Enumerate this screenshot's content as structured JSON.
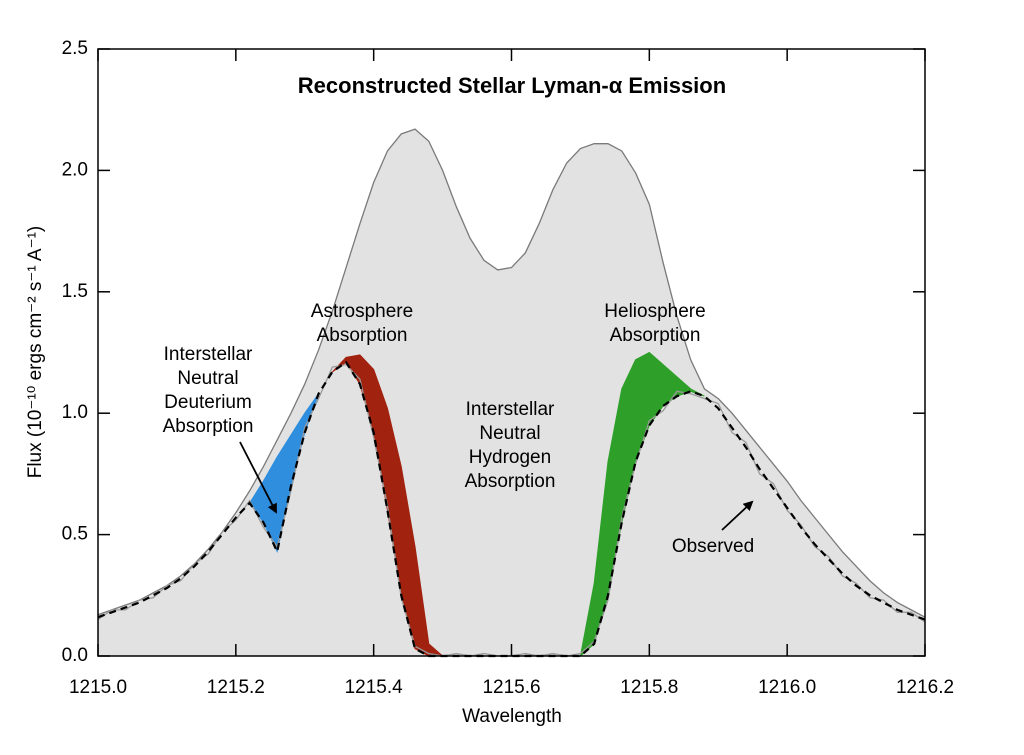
{
  "chart_data": {
    "type": "line",
    "title": "Reconstructed Stellar Lyman-α Emission",
    "x_label": "Wavelength",
    "y_label": "Flux (10⁻¹⁰ ergs cm⁻² s⁻¹ A⁻¹)",
    "xlim": [
      1215,
      1216.2
    ],
    "ylim": [
      0,
      2.5
    ],
    "xticks": [
      {
        "value": 1215,
        "label": "1215.0"
      },
      1215.2,
      1215.4,
      1215.6,
      1215.8,
      {
        "value": 1216,
        "label": "1216.0"
      },
      1216.2
    ],
    "yticks": [
      {
        "value": 0,
        "label": "0.0"
      },
      0.5,
      {
        "value": 1,
        "label": "1.0"
      },
      1.5,
      {
        "value": 2,
        "label": "2.0"
      },
      2.5
    ],
    "x": [
      1215,
      1215.02,
      1215.04,
      1215.06,
      1215.08,
      1215.1,
      1215.12,
      1215.14,
      1215.16,
      1215.18,
      1215.2,
      1215.22,
      1215.24,
      1215.26,
      1215.28,
      1215.3,
      1215.32,
      1215.34,
      1215.36,
      1215.38,
      1215.4,
      1215.42,
      1215.44,
      1215.46,
      1215.48,
      1215.5,
      1215.52,
      1215.54,
      1215.56,
      1215.58,
      1215.6,
      1215.62,
      1215.64,
      1215.66,
      1215.68,
      1215.7,
      1215.72,
      1215.74,
      1215.76,
      1215.78,
      1215.8,
      1215.82,
      1215.84,
      1215.86,
      1215.88,
      1215.9,
      1215.92,
      1215.94,
      1215.96,
      1215.98,
      1216,
      1216.02,
      1216.04,
      1216.06,
      1216.08,
      1216.1,
      1216.12,
      1216.14,
      1216.16,
      1216.18,
      1216.2
    ],
    "series": [
      {
        "style": "area",
        "color": "#e2e2e2",
        "line_color": "#7a7a7a",
        "values": [
          0.17,
          0.19,
          0.21,
          0.23,
          0.26,
          0.29,
          0.33,
          0.38,
          0.44,
          0.51,
          0.59,
          0.68,
          0.78,
          0.89,
          1.0,
          1.12,
          1.26,
          1.42,
          1.6,
          1.78,
          1.95,
          2.08,
          2.15,
          2.17,
          2.12,
          2.0,
          1.85,
          1.72,
          1.63,
          1.59,
          1.6,
          1.66,
          1.78,
          1.92,
          2.03,
          2.09,
          2.11,
          2.11,
          2.08,
          1.99,
          1.86,
          1.62,
          1.4,
          1.22,
          1.1,
          1.06,
          1.0,
          0.93,
          0.86,
          0.79,
          0.72,
          0.64,
          0.57,
          0.5,
          0.43,
          0.37,
          0.31,
          0.26,
          0.22,
          0.19,
          0.16
        ]
      },
      {
        "style": "band",
        "color": "#2f8ede",
        "values": [
          null,
          null,
          null,
          null,
          null,
          null,
          null,
          null,
          null,
          null,
          null,
          0.63,
          0.72,
          0.82,
          0.91,
          1.0,
          1.08,
          null,
          null,
          null,
          null,
          null,
          null,
          null,
          null,
          null,
          null,
          null,
          null,
          null,
          null,
          null,
          null,
          null,
          null,
          null,
          null,
          null,
          null,
          null,
          null,
          null,
          null,
          null,
          null,
          null,
          null,
          null,
          null,
          null,
          null,
          null,
          null,
          null,
          null,
          null,
          null,
          null,
          null,
          null,
          null
        ]
      },
      {
        "style": "band",
        "color": "#a1220f",
        "values": [
          null,
          null,
          null,
          null,
          null,
          null,
          null,
          null,
          null,
          null,
          null,
          null,
          null,
          null,
          null,
          null,
          null,
          1.17,
          1.23,
          1.24,
          1.18,
          1.02,
          0.78,
          0.45,
          0.05,
          0,
          null,
          null,
          null,
          null,
          null,
          null,
          null,
          null,
          null,
          null,
          null,
          null,
          null,
          null,
          null,
          null,
          null,
          null,
          null,
          null,
          null,
          null,
          null,
          null,
          null,
          null,
          null,
          null,
          null,
          null,
          null,
          null,
          null,
          null,
          null
        ]
      },
      {
        "style": "band",
        "color": "#2ea02a",
        "values": [
          null,
          null,
          null,
          null,
          null,
          null,
          null,
          null,
          null,
          null,
          null,
          null,
          null,
          null,
          null,
          null,
          null,
          null,
          null,
          null,
          null,
          null,
          null,
          null,
          null,
          null,
          null,
          null,
          null,
          null,
          null,
          null,
          null,
          null,
          null,
          0,
          0.3,
          0.8,
          1.1,
          1.22,
          1.25,
          1.2,
          1.15,
          1.1,
          1.07,
          null,
          null,
          null,
          null,
          null,
          null,
          null,
          null,
          null,
          null,
          null,
          null,
          null,
          null,
          null,
          null
        ]
      },
      {
        "style": "line",
        "color": "#9a9a9a",
        "values": [
          0.15,
          0.19,
          0.19,
          0.23,
          0.24,
          0.29,
          0.31,
          0.38,
          0.42,
          0.51,
          0.56,
          0.64,
          0.53,
          0.45,
          0.68,
          0.94,
          1.06,
          1.19,
          1.2,
          1.14,
          0.9,
          0.62,
          0.24,
          0.04,
          0.01,
          0,
          0.01,
          0,
          0.01,
          0,
          0,
          0.01,
          0,
          0.01,
          0,
          0.01,
          0.06,
          0.23,
          0.57,
          0.79,
          0.97,
          1.01,
          1.09,
          1.08,
          1.06,
          1.04,
          0.92,
          0.88,
          0.75,
          0.71,
          0.6,
          0.54,
          0.45,
          0.41,
          0.33,
          0.3,
          0.24,
          0.23,
          0.18,
          0.18,
          0.14
        ]
      },
      {
        "style": "dashed",
        "color": "#000000",
        "values": [
          0.16,
          0.18,
          0.2,
          0.22,
          0.25,
          0.28,
          0.32,
          0.37,
          0.43,
          0.5,
          0.57,
          0.63,
          0.55,
          0.43,
          0.7,
          0.92,
          1.08,
          1.17,
          1.21,
          1.12,
          0.92,
          0.6,
          0.25,
          0.03,
          0,
          0,
          0,
          0,
          0,
          0,
          0,
          0,
          0,
          0,
          0,
          0,
          0.05,
          0.25,
          0.55,
          0.8,
          0.95,
          1.03,
          1.07,
          1.09,
          1.07,
          1.02,
          0.94,
          0.86,
          0.77,
          0.69,
          0.61,
          0.53,
          0.46,
          0.4,
          0.34,
          0.29,
          0.25,
          0.22,
          0.19,
          0.17,
          0.15
        ]
      }
    ],
    "annotations": [
      {
        "lines": [
          "Interstellar",
          "Neutral",
          "Deuterium",
          "Absorption"
        ],
        "color": "#000000"
      },
      {
        "lines": [
          "Astrosphere",
          "Absorption"
        ],
        "color": "#a0281c"
      },
      {
        "lines": [
          "Interstellar",
          "Neutral",
          "Hydrogen",
          "Absorption"
        ],
        "color": "#000000"
      },
      {
        "lines": [
          "Heliosphere",
          "Absorption"
        ],
        "color": "#3aa535"
      },
      {
        "lines": [
          "Observed"
        ],
        "color": "#000000"
      }
    ]
  }
}
